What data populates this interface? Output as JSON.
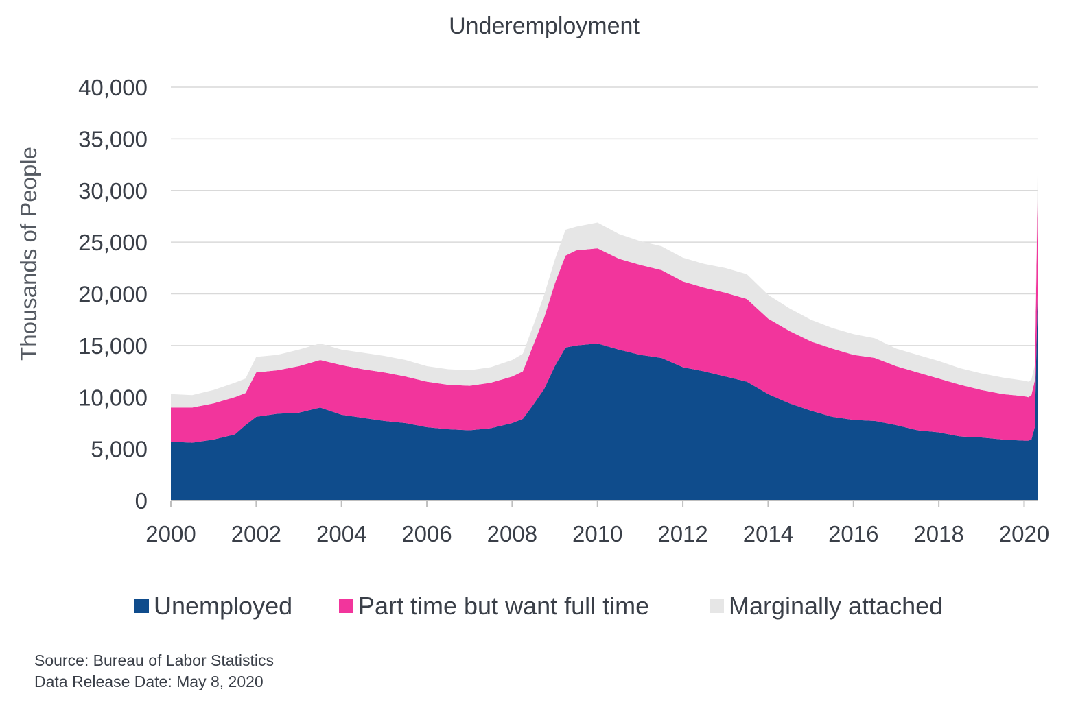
{
  "chart_data": {
    "type": "area",
    "stacked": true,
    "title": "Underemployment",
    "ylabel": "Thousands of People",
    "xlabel": "",
    "xlim": [
      2000,
      2020.33
    ],
    "ylim": [
      0,
      40000
    ],
    "x_ticks": [
      "2000",
      "2002",
      "2004",
      "2006",
      "2008",
      "2010",
      "2012",
      "2014",
      "2016",
      "2018",
      "2020"
    ],
    "y_ticks": [
      "0",
      "5,000",
      "10,000",
      "15,000",
      "20,000",
      "25,000",
      "30,000",
      "35,000",
      "40,000"
    ],
    "grid": true,
    "legend_position": "bottom",
    "x": [
      2000.0,
      2000.5,
      2001.0,
      2001.5,
      2001.75,
      2002.0,
      2002.5,
      2003.0,
      2003.5,
      2004.0,
      2004.5,
      2005.0,
      2005.5,
      2006.0,
      2006.5,
      2007.0,
      2007.5,
      2008.0,
      2008.25,
      2008.5,
      2008.75,
      2009.0,
      2009.25,
      2009.5,
      2010.0,
      2010.5,
      2011.0,
      2011.5,
      2012.0,
      2012.5,
      2013.0,
      2013.5,
      2014.0,
      2014.5,
      2015.0,
      2015.5,
      2016.0,
      2016.5,
      2017.0,
      2017.5,
      2018.0,
      2018.5,
      2019.0,
      2019.5,
      2020.0,
      2020.1,
      2020.17,
      2020.25,
      2020.33
    ],
    "series": [
      {
        "name": "Unemployed",
        "color": "#0f4c8c",
        "values": [
          5700,
          5600,
          5900,
          6400,
          7300,
          8100,
          8400,
          8500,
          9000,
          8300,
          8000,
          7700,
          7500,
          7100,
          6900,
          6800,
          7000,
          7500,
          7900,
          9300,
          10800,
          13000,
          14800,
          15000,
          15200,
          14600,
          14100,
          13800,
          12900,
          12500,
          12000,
          11500,
          10300,
          9400,
          8700,
          8100,
          7800,
          7700,
          7300,
          6800,
          6600,
          6200,
          6100,
          5900,
          5800,
          5800,
          5900,
          7100,
          23100
        ]
      },
      {
        "name": "Part time but want full time",
        "color": "#f2359c",
        "values": [
          3300,
          3400,
          3500,
          3600,
          3100,
          4300,
          4200,
          4500,
          4600,
          4800,
          4700,
          4700,
          4500,
          4400,
          4300,
          4300,
          4400,
          4500,
          4600,
          5800,
          6900,
          8000,
          8900,
          9200,
          9200,
          8800,
          8700,
          8500,
          8300,
          8100,
          8100,
          8000,
          7300,
          7000,
          6700,
          6600,
          6300,
          6100,
          5700,
          5600,
          5200,
          5000,
          4600,
          4400,
          4300,
          4200,
          4300,
          4500,
          10900
        ]
      },
      {
        "name": "Marginally attached",
        "color": "#e6e6e6",
        "values": [
          1300,
          1200,
          1300,
          1400,
          1400,
          1500,
          1500,
          1600,
          1600,
          1500,
          1600,
          1600,
          1600,
          1500,
          1500,
          1500,
          1500,
          1600,
          1700,
          1900,
          2200,
          2300,
          2500,
          2300,
          2500,
          2400,
          2300,
          2300,
          2300,
          2300,
          2400,
          2400,
          2300,
          2200,
          2100,
          2000,
          2000,
          1900,
          1700,
          1700,
          1700,
          1600,
          1600,
          1600,
          1500,
          1500,
          1500,
          1500,
          2200
        ]
      }
    ]
  },
  "footer": {
    "source": "Source: Bureau of Labor Statistics",
    "release": "Data Release Date: May 8, 2020"
  }
}
